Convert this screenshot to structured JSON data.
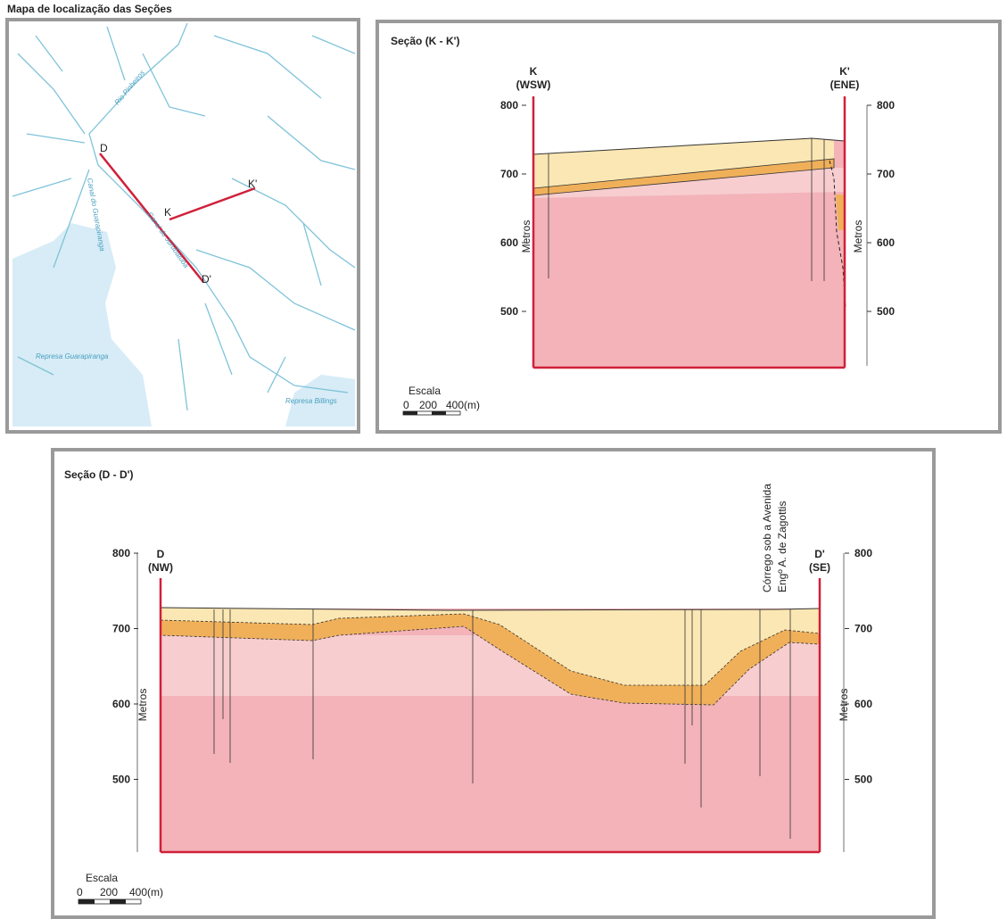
{
  "map": {
    "title": "Mapa de localização das Seções",
    "labels": [
      "Rio Pinheiros",
      "Canal do Guarapiranga",
      "Canal do Jurubatuba",
      "Represa Guarapiranga",
      "Represa Billings"
    ],
    "section_labels": [
      "D",
      "D'",
      "K",
      "K'"
    ]
  },
  "section_kk": {
    "title": "Seção (K - K')",
    "left": {
      "id": "K",
      "dir": "(WSW)"
    },
    "right": {
      "id": "K'",
      "dir": "(ENE)"
    },
    "y_ticks": [
      800,
      700,
      600,
      500
    ],
    "axis_label": "Metros",
    "scale": {
      "label": "Escala",
      "ticks": [
        "0",
        "200",
        "400(m)"
      ]
    }
  },
  "section_dd": {
    "title": "Seção (D - D')",
    "left": {
      "id": "D",
      "dir": "(NW)"
    },
    "right": {
      "id": "D'",
      "dir": "(SE)"
    },
    "y_ticks": [
      800,
      700,
      600,
      500
    ],
    "axis_label": "Metros",
    "annotation": [
      "Córrego sob a Avenida",
      "Engº A. de Zagottis"
    ],
    "scale": {
      "label": "Escala",
      "ticks": [
        "0",
        "200",
        "400(m)"
      ]
    }
  }
}
